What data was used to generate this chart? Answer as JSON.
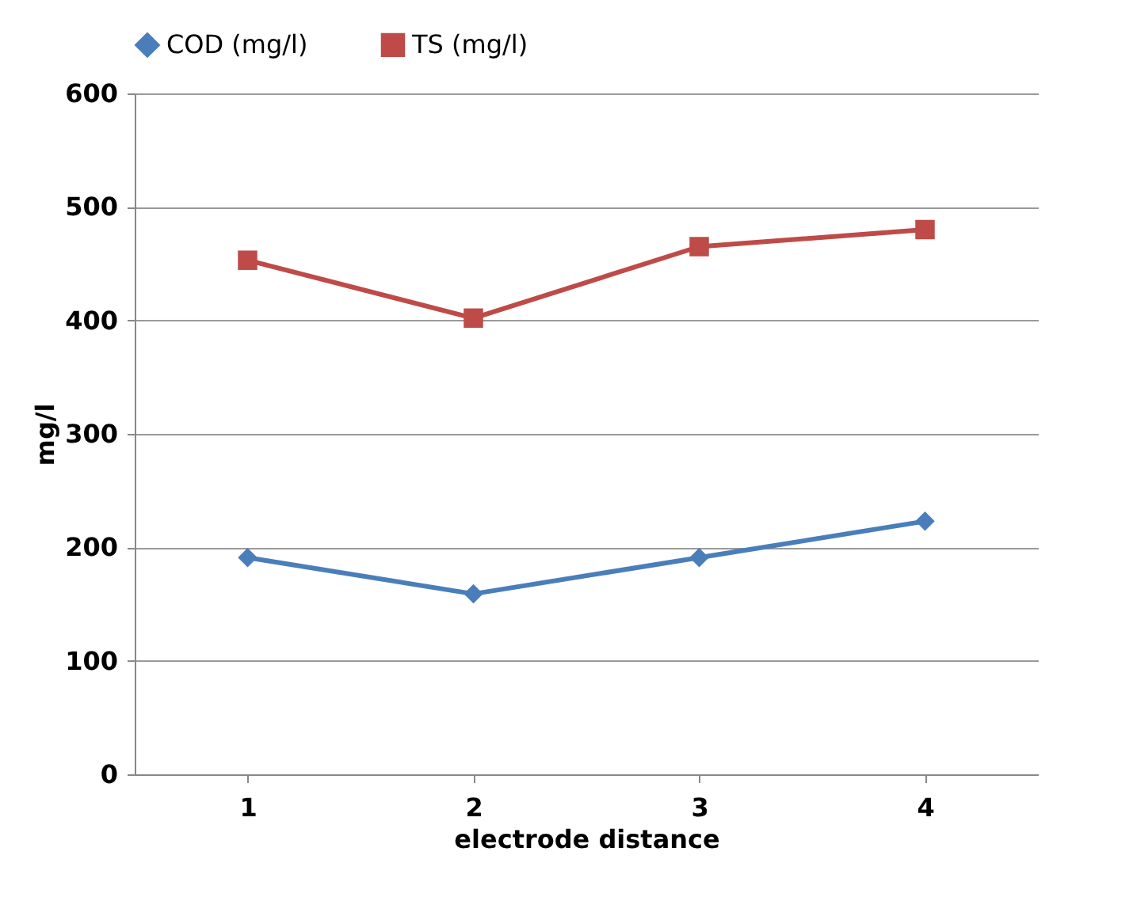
{
  "chart_data": {
    "type": "line",
    "xlabel": "electrode distance",
    "ylabel": "mg/l",
    "categories": [
      "1",
      "2",
      "3",
      "4"
    ],
    "series": [
      {
        "name": "COD (mg/l)",
        "color": "#4a7ebb",
        "marker": "diamond",
        "values": [
          191,
          159,
          191,
          223
        ]
      },
      {
        "name": "TS (mg/l)",
        "color": "#be4b48",
        "marker": "square",
        "values": [
          453,
          402,
          465,
          480
        ]
      }
    ],
    "ylim": [
      0,
      600
    ],
    "yticks": [
      0,
      100,
      200,
      300,
      400,
      500,
      600
    ],
    "grid": "y",
    "legend": "top"
  }
}
